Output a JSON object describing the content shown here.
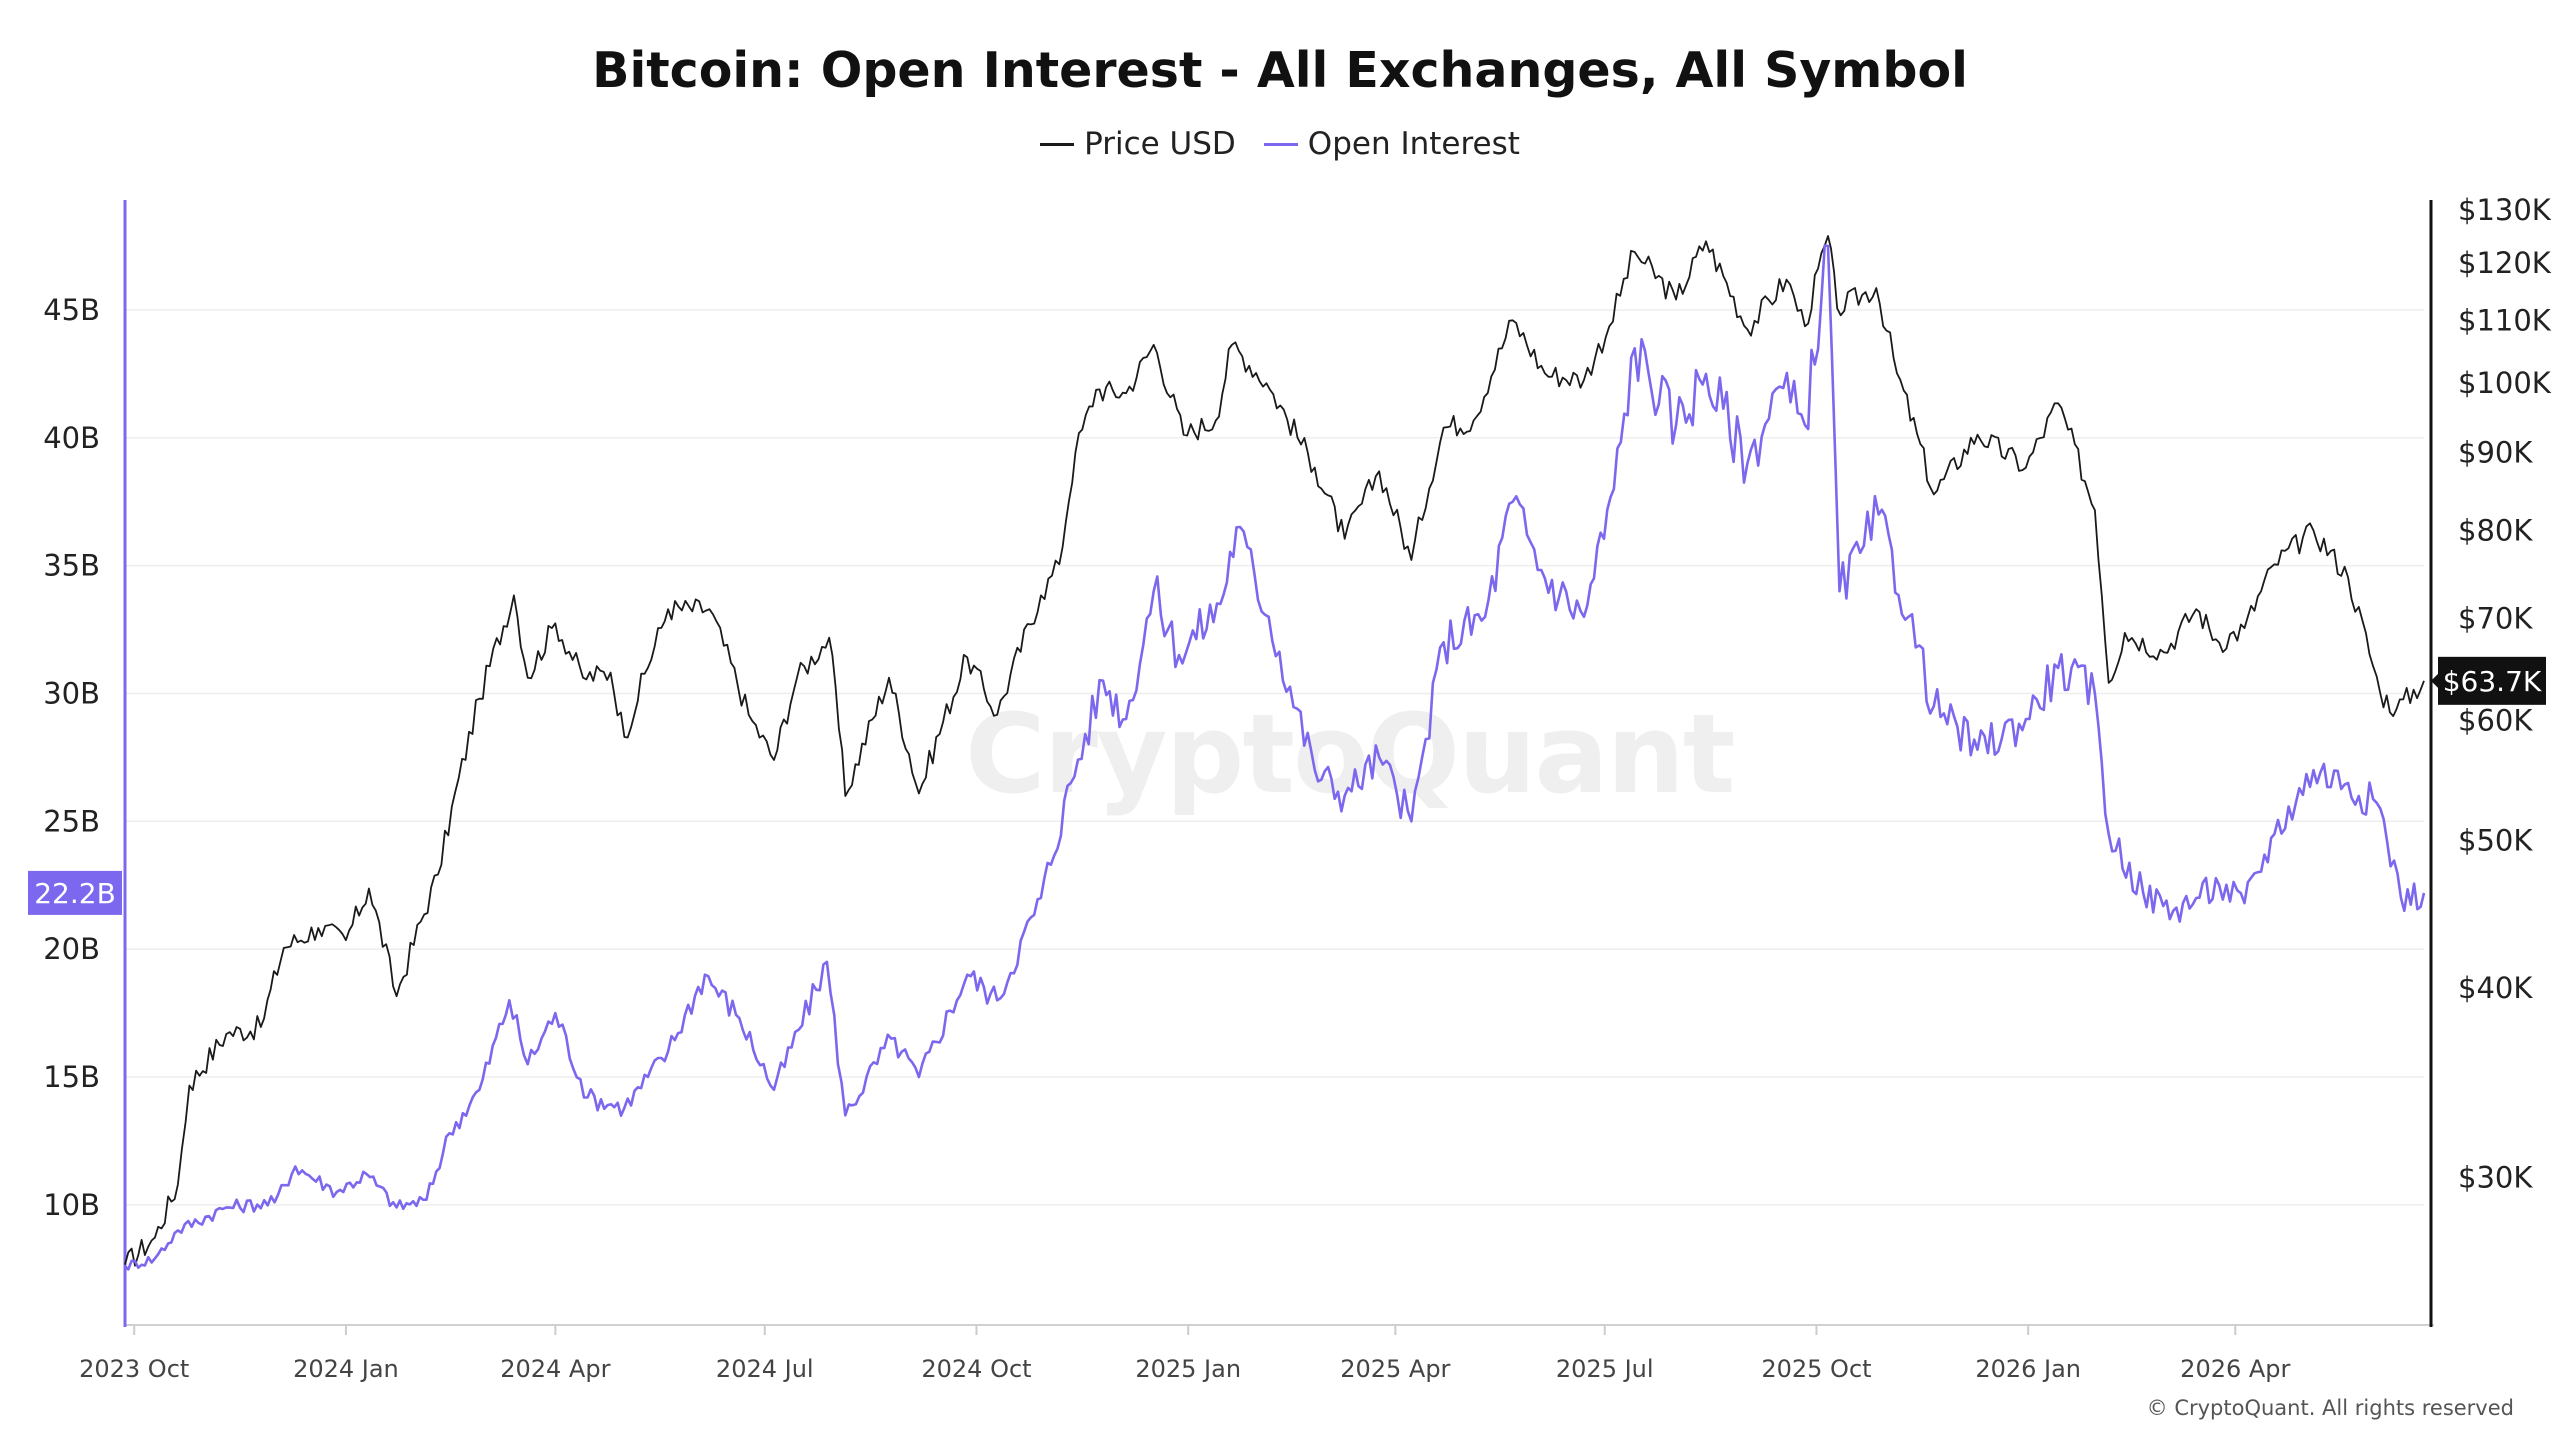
{
  "chart_data": {
    "type": "line",
    "title": "Bitcoin: Open Interest - All Exchanges, All Symbol",
    "watermark": "CryptoQuant",
    "copyright": "© CryptoQuant. All rights reserved",
    "legend": [
      {
        "name": "Price USD",
        "color": "#1a1a1a"
      },
      {
        "name": "Open Interest",
        "color": "#7B68EE"
      }
    ],
    "x_ticks": [
      "2023 Oct",
      "2024 Jan",
      "2024 Apr",
      "2024 Jul",
      "2024 Oct",
      "2025 Jan",
      "2025 Apr",
      "2025 Jul",
      "2025 Oct",
      "2026 Jan",
      "2026 Apr"
    ],
    "left_axis": {
      "label_color": "#7B68EE",
      "ticks": [
        10,
        15,
        20,
        25,
        30,
        35,
        40,
        45
      ],
      "tick_labels": [
        "10B",
        "15B",
        "20B",
        "25B",
        "30B",
        "35B",
        "40B",
        "45B"
      ],
      "range": [
        5.3,
        49.3
      ],
      "current_value_label": "22.2B",
      "current_value": 22.2
    },
    "right_axis": {
      "scale": "log",
      "ticks": [
        30000,
        40000,
        50000,
        60000,
        70000,
        80000,
        90000,
        100000,
        110000,
        120000,
        130000
      ],
      "tick_labels": [
        "$30K",
        "$40K",
        "$50K",
        "$60K",
        "$70K",
        "$80K",
        "$90K",
        "$100K",
        "$110K",
        "$120K",
        "$130K"
      ],
      "range": [
        24000,
        132000
      ],
      "current_value_label": "$63.7K",
      "current_value": 63700
    },
    "x_range": [
      "2023-09-27",
      "2026-06-22"
    ],
    "series": [
      {
        "name": "Price USD",
        "color": "#1a1a1a",
        "axis": "right",
        "points": [
          [
            "2023-09-27",
            26300
          ],
          [
            "2023-10-10",
            27400
          ],
          [
            "2023-10-20",
            29700
          ],
          [
            "2023-10-25",
            34500
          ],
          [
            "2023-11-10",
            37300
          ],
          [
            "2023-11-25",
            37700
          ],
          [
            "2023-12-05",
            42500
          ],
          [
            "2023-12-20",
            43800
          ],
          [
            "2024-01-01",
            43000
          ],
          [
            "2024-01-11",
            46500
          ],
          [
            "2024-01-23",
            39500
          ],
          [
            "2024-02-10",
            47500
          ],
          [
            "2024-02-28",
            62000
          ],
          [
            "2024-03-14",
            72500
          ],
          [
            "2024-03-20",
            64000
          ],
          [
            "2024-04-01",
            69500
          ],
          [
            "2024-04-13",
            64000
          ],
          [
            "2024-04-25",
            64500
          ],
          [
            "2024-05-01",
            58500
          ],
          [
            "2024-05-20",
            71000
          ],
          [
            "2024-06-07",
            71000
          ],
          [
            "2024-06-24",
            60500
          ],
          [
            "2024-07-05",
            56500
          ],
          [
            "2024-07-15",
            64000
          ],
          [
            "2024-07-29",
            68000
          ],
          [
            "2024-08-05",
            53500
          ],
          [
            "2024-08-24",
            64000
          ],
          [
            "2024-09-06",
            53700
          ],
          [
            "2024-09-27",
            66000
          ],
          [
            "2024-10-10",
            60500
          ],
          [
            "2024-10-29",
            72500
          ],
          [
            "2024-11-06",
            76000
          ],
          [
            "2024-11-13",
            90000
          ],
          [
            "2024-11-22",
            99000
          ],
          [
            "2024-12-05",
            98500
          ],
          [
            "2024-12-17",
            106000
          ],
          [
            "2024-12-30",
            92500
          ],
          [
            "2025-01-13",
            94500
          ],
          [
            "2025-01-20",
            106000
          ],
          [
            "2025-02-04",
            100000
          ],
          [
            "2025-02-25",
            88000
          ],
          [
            "2025-03-10",
            79000
          ],
          [
            "2025-03-25",
            87500
          ],
          [
            "2025-04-08",
            76500
          ],
          [
            "2025-04-22",
            93500
          ],
          [
            "2025-05-05",
            94500
          ],
          [
            "2025-05-22",
            110000
          ],
          [
            "2025-06-05",
            101500
          ],
          [
            "2025-06-22",
            100500
          ],
          [
            "2025-07-03",
            109000
          ],
          [
            "2025-07-14",
            122000
          ],
          [
            "2025-08-01",
            113500
          ],
          [
            "2025-08-14",
            124000
          ],
          [
            "2025-09-01",
            108500
          ],
          [
            "2025-09-18",
            117000
          ],
          [
            "2025-09-26",
            109000
          ],
          [
            "2025-10-06",
            125000
          ],
          [
            "2025-10-10",
            112000
          ],
          [
            "2025-10-27",
            115500
          ],
          [
            "2025-11-05",
            101500
          ],
          [
            "2025-11-21",
            84500
          ],
          [
            "2025-12-10",
            92500
          ],
          [
            "2025-12-31",
            88000
          ],
          [
            "2026-01-14",
            97000
          ],
          [
            "2026-01-30",
            82500
          ],
          [
            "2026-02-05",
            63500
          ],
          [
            "2026-02-12",
            68500
          ],
          [
            "2026-03-01",
            66500
          ],
          [
            "2026-03-15",
            71000
          ],
          [
            "2026-03-25",
            67500
          ],
          [
            "2026-04-05",
            69000
          ],
          [
            "2026-04-18",
            76000
          ],
          [
            "2026-05-05",
            80000
          ],
          [
            "2026-05-20",
            74500
          ],
          [
            "2026-06-03",
            62500
          ],
          [
            "2026-06-10",
            61000
          ],
          [
            "2026-06-22",
            63700
          ]
        ]
      },
      {
        "name": "Open Interest",
        "color": "#7B68EE",
        "axis": "left",
        "points": [
          [
            "2023-09-27",
            7.6
          ],
          [
            "2023-10-10",
            7.9
          ],
          [
            "2023-10-20",
            9.0
          ],
          [
            "2023-11-10",
            9.9
          ],
          [
            "2023-12-01",
            10.1
          ],
          [
            "2023-12-10",
            11.5
          ],
          [
            "2023-12-28",
            10.5
          ],
          [
            "2024-01-10",
            11.2
          ],
          [
            "2024-01-23",
            9.9
          ],
          [
            "2024-02-05",
            10.2
          ],
          [
            "2024-02-15",
            12.8
          ],
          [
            "2024-02-28",
            14.5
          ],
          [
            "2024-03-12",
            18.0
          ],
          [
            "2024-03-20",
            15.5
          ],
          [
            "2024-04-01",
            17.5
          ],
          [
            "2024-04-15",
            14.2
          ],
          [
            "2024-05-01",
            13.8
          ],
          [
            "2024-05-20",
            16.0
          ],
          [
            "2024-06-05",
            19.0
          ],
          [
            "2024-06-20",
            17.3
          ],
          [
            "2024-07-05",
            14.5
          ],
          [
            "2024-07-28",
            19.5
          ],
          [
            "2024-08-05",
            13.5
          ],
          [
            "2024-08-25",
            16.5
          ],
          [
            "2024-09-06",
            15.0
          ],
          [
            "2024-09-27",
            19.0
          ],
          [
            "2024-10-10",
            18.0
          ],
          [
            "2024-10-29",
            22.0
          ],
          [
            "2024-11-11",
            26.5
          ],
          [
            "2024-11-25",
            30.5
          ],
          [
            "2024-12-05",
            29.0
          ],
          [
            "2024-12-17",
            34.0
          ],
          [
            "2024-12-28",
            31.5
          ],
          [
            "2025-01-15",
            33.5
          ],
          [
            "2025-01-22",
            36.5
          ],
          [
            "2025-02-05",
            33.0
          ],
          [
            "2025-02-25",
            27.0
          ],
          [
            "2025-03-10",
            26.0
          ],
          [
            "2025-03-25",
            27.5
          ],
          [
            "2025-04-08",
            25.0
          ],
          [
            "2025-04-22",
            32.0
          ],
          [
            "2025-05-10",
            33.0
          ],
          [
            "2025-05-22",
            37.5
          ],
          [
            "2025-06-05",
            34.5
          ],
          [
            "2025-06-22",
            33.0
          ],
          [
            "2025-07-05",
            38.0
          ],
          [
            "2025-07-14",
            43.5
          ],
          [
            "2025-08-01",
            40.5
          ],
          [
            "2025-08-14",
            42.5
          ],
          [
            "2025-09-01",
            39.0
          ],
          [
            "2025-09-15",
            42.0
          ],
          [
            "2025-09-26",
            40.5
          ],
          [
            "2025-10-06",
            47.5
          ],
          [
            "2025-10-11",
            34.0
          ],
          [
            "2025-10-20",
            35.5
          ],
          [
            "2025-10-28",
            37.0
          ],
          [
            "2025-11-10",
            33.0
          ],
          [
            "2025-11-21",
            29.5
          ],
          [
            "2025-12-10",
            27.8
          ],
          [
            "2025-12-31",
            29.0
          ],
          [
            "2026-01-14",
            31.0
          ],
          [
            "2026-01-30",
            30.0
          ],
          [
            "2026-02-05",
            24.5
          ],
          [
            "2026-02-20",
            22.2
          ],
          [
            "2026-03-05",
            21.5
          ],
          [
            "2026-03-15",
            22.0
          ],
          [
            "2026-03-25",
            22.5
          ],
          [
            "2026-04-05",
            21.8
          ],
          [
            "2026-04-18",
            24.5
          ],
          [
            "2026-05-05",
            27.0
          ],
          [
            "2026-05-20",
            26.5
          ],
          [
            "2026-06-03",
            25.5
          ],
          [
            "2026-06-12",
            22.0
          ],
          [
            "2026-06-22",
            22.2
          ]
        ]
      }
    ]
  }
}
